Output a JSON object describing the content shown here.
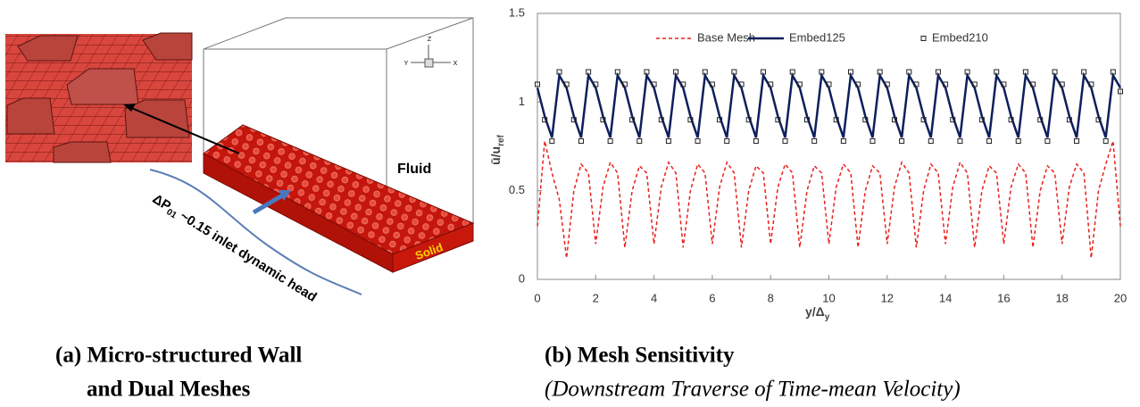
{
  "chart_data": {
    "type": "line",
    "x_label": {
      "main": "y/Δ",
      "sub": "y"
    },
    "y_label": {
      "main": "ū/u",
      "sub": "ref"
    },
    "xlim": [
      0,
      20
    ],
    "xticks": [
      0,
      2,
      4,
      6,
      8,
      10,
      12,
      14,
      16,
      18,
      20
    ],
    "ylim": [
      0,
      1.5
    ],
    "yticks": [
      0,
      0.5,
      1,
      1.5
    ],
    "x": [
      0,
      0.25,
      0.5,
      0.75,
      1,
      1.25,
      1.5,
      1.75,
      2,
      2.25,
      2.5,
      2.75,
      3,
      3.25,
      3.5,
      3.75,
      4,
      4.25,
      4.5,
      4.75,
      5,
      5.25,
      5.5,
      5.75,
      6,
      6.25,
      6.5,
      6.75,
      7,
      7.25,
      7.5,
      7.75,
      8,
      8.25,
      8.5,
      8.75,
      9,
      9.25,
      9.5,
      9.75,
      10,
      10.25,
      10.5,
      10.75,
      11,
      11.25,
      11.5,
      11.75,
      12,
      12.25,
      12.5,
      12.75,
      13,
      13.25,
      13.5,
      13.75,
      14,
      14.25,
      14.5,
      14.75,
      15,
      15.25,
      15.5,
      15.75,
      16,
      16.25,
      16.5,
      16.75,
      17,
      17.25,
      17.5,
      17.75,
      18,
      18.25,
      18.5,
      18.75,
      19,
      19.25,
      19.5,
      19.75,
      20
    ],
    "series": [
      {
        "name": "Base Mesh",
        "color": "#e8211c",
        "style": "dashed",
        "values": [
          0.3,
          0.78,
          0.6,
          0.45,
          0.12,
          0.5,
          0.65,
          0.6,
          0.2,
          0.52,
          0.66,
          0.6,
          0.18,
          0.5,
          0.64,
          0.6,
          0.2,
          0.52,
          0.66,
          0.6,
          0.18,
          0.5,
          0.65,
          0.6,
          0.2,
          0.52,
          0.66,
          0.6,
          0.18,
          0.5,
          0.64,
          0.6,
          0.2,
          0.52,
          0.65,
          0.6,
          0.18,
          0.5,
          0.64,
          0.6,
          0.2,
          0.52,
          0.65,
          0.6,
          0.18,
          0.5,
          0.64,
          0.6,
          0.2,
          0.52,
          0.66,
          0.6,
          0.18,
          0.5,
          0.65,
          0.6,
          0.2,
          0.52,
          0.66,
          0.6,
          0.18,
          0.5,
          0.64,
          0.6,
          0.2,
          0.52,
          0.65,
          0.6,
          0.18,
          0.5,
          0.64,
          0.6,
          0.2,
          0.52,
          0.65,
          0.6,
          0.12,
          0.5,
          0.65,
          0.78,
          0.3
        ]
      },
      {
        "name": "Embed125",
        "color": "#0d1f5c",
        "style": "solid",
        "values": [
          1.08,
          0.92,
          0.8,
          1.15,
          1.08,
          0.92,
          0.8,
          1.15,
          1.08,
          0.92,
          0.8,
          1.15,
          1.08,
          0.92,
          0.8,
          1.15,
          1.08,
          0.92,
          0.8,
          1.15,
          1.08,
          0.92,
          0.8,
          1.15,
          1.08,
          0.92,
          0.8,
          1.15,
          1.08,
          0.92,
          0.8,
          1.15,
          1.08,
          0.92,
          0.8,
          1.15,
          1.08,
          0.92,
          0.8,
          1.15,
          1.08,
          0.92,
          0.8,
          1.15,
          1.08,
          0.92,
          0.8,
          1.15,
          1.08,
          0.92,
          0.8,
          1.15,
          1.08,
          0.92,
          0.8,
          1.15,
          1.08,
          0.92,
          0.8,
          1.15,
          1.08,
          0.92,
          0.8,
          1.15,
          1.08,
          0.92,
          0.8,
          1.15,
          1.08,
          0.92,
          0.8,
          1.15,
          1.08,
          0.92,
          0.8,
          1.15,
          1.08,
          0.92,
          0.8,
          1.15,
          1.08
        ]
      },
      {
        "name": "Embed210",
        "color": "#222222",
        "style": "markers",
        "values": [
          1.1,
          0.9,
          0.78,
          1.17,
          1.1,
          0.9,
          0.78,
          1.17,
          1.1,
          0.9,
          0.78,
          1.17,
          1.1,
          0.9,
          0.78,
          1.17,
          1.1,
          0.9,
          0.78,
          1.17,
          1.1,
          0.9,
          0.78,
          1.17,
          1.1,
          0.9,
          0.78,
          1.17,
          1.1,
          0.9,
          0.78,
          1.17,
          1.1,
          0.9,
          0.78,
          1.17,
          1.1,
          0.9,
          0.78,
          1.17,
          1.1,
          0.9,
          0.78,
          1.17,
          1.1,
          0.9,
          0.78,
          1.17,
          1.1,
          0.9,
          0.78,
          1.17,
          1.1,
          0.9,
          0.78,
          1.17,
          1.1,
          0.9,
          0.78,
          1.17,
          1.1,
          0.9,
          0.78,
          1.17,
          1.1,
          0.9,
          0.78,
          1.17,
          1.1,
          0.9,
          0.78,
          1.17,
          1.1,
          0.9,
          0.78,
          1.17,
          1.1,
          0.9,
          0.78,
          1.17,
          1.06
        ]
      }
    ]
  },
  "panel_a": {
    "fluid": "Fluid",
    "solid": "Solid",
    "axes": [
      "Z",
      "Y",
      "X"
    ],
    "pressure": {
      "symbol": "ΔP",
      "sub": "01",
      "rest": " ~0.15 inlet dynamic head"
    }
  },
  "captions": {
    "a": [
      "(a) Micro-structured Wall",
      "and Dual Meshes"
    ],
    "b": [
      "(b) Mesh Sensitivity",
      "(Downstream Traverse of Time-mean Velocity)"
    ]
  }
}
